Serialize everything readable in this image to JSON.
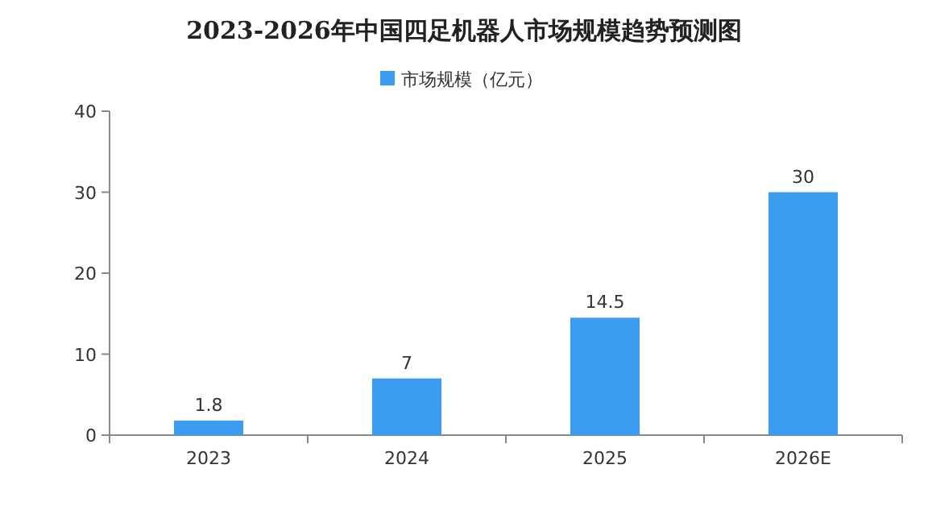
{
  "chart_data": {
    "type": "bar",
    "title": "2023-2026年中国四足机器人市场规模趋势预测图",
    "categories": [
      "2023",
      "2024",
      "2025",
      "2026E"
    ],
    "series": [
      {
        "name": "市场规模（亿元）",
        "color": "#3c9cf0",
        "values": [
          1.8,
          7,
          14.5,
          30
        ]
      }
    ],
    "ylim": [
      0,
      40
    ],
    "yticks": [
      0,
      10,
      20,
      30,
      40
    ],
    "data_labels": true,
    "legend": "top",
    "grid": false
  }
}
